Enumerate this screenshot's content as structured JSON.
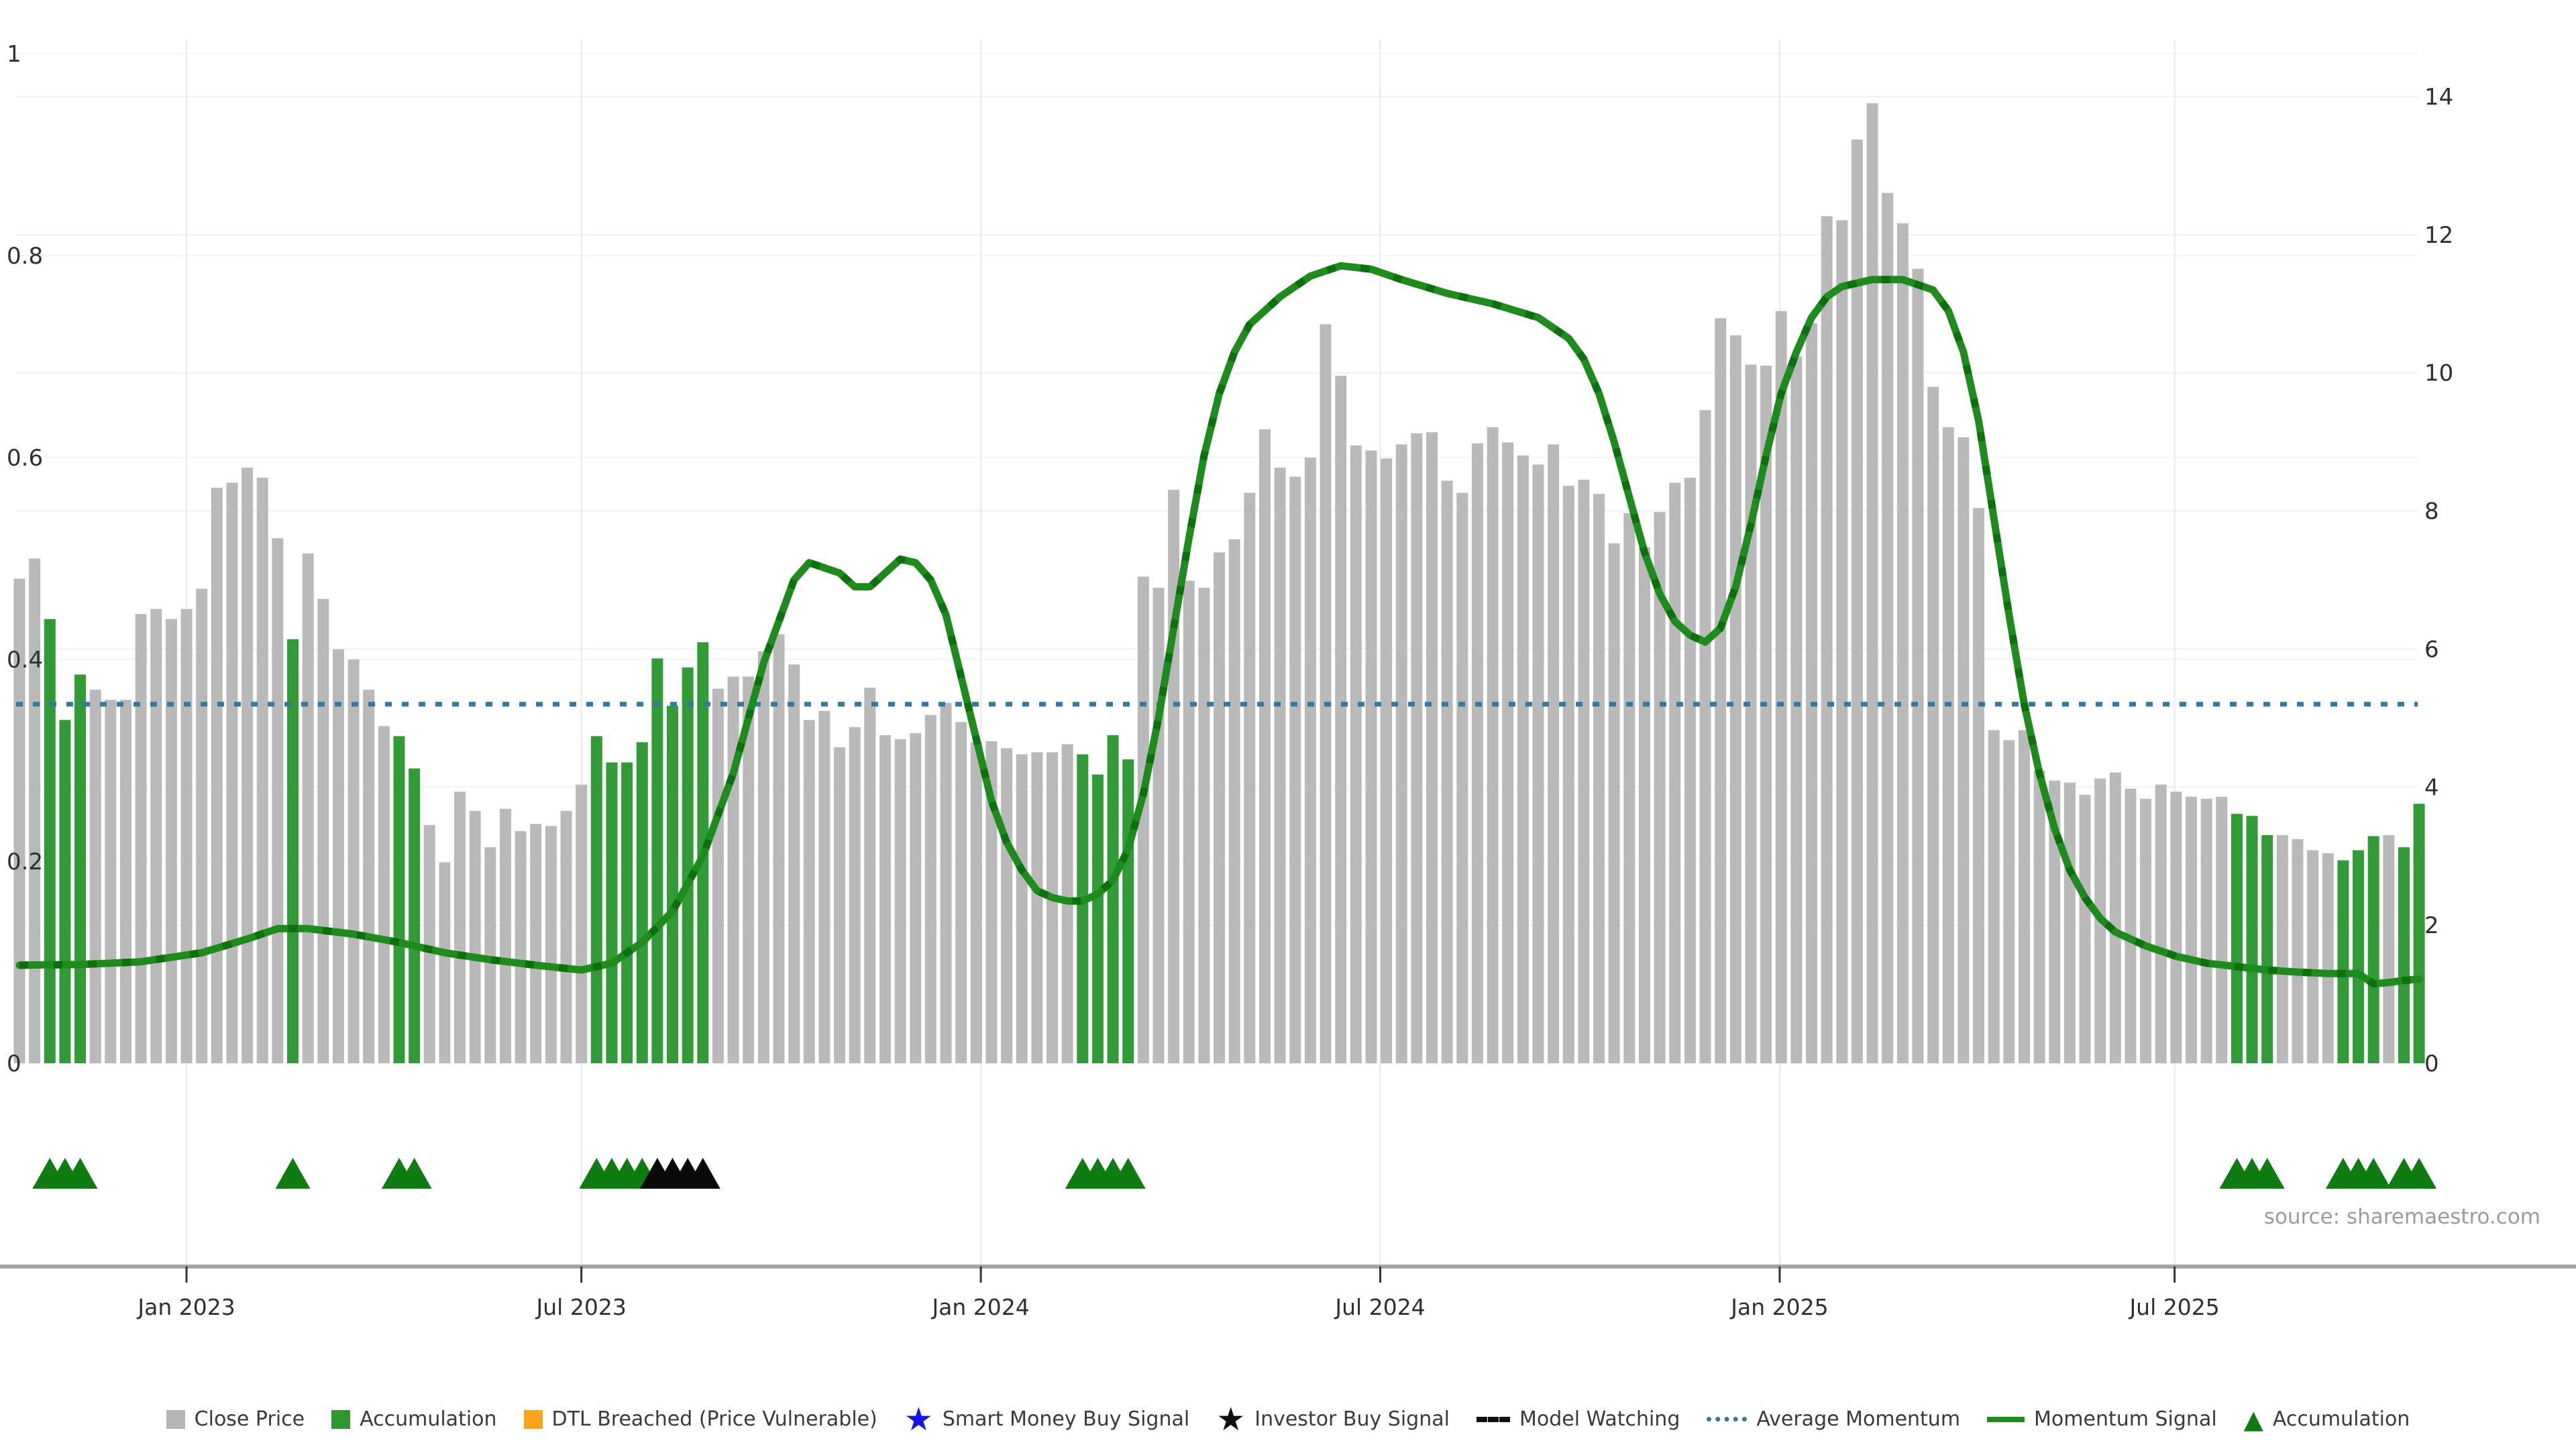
{
  "source": "source: sharemaestro.com",
  "colors": {
    "bar_gray": "#b9b9b9",
    "bar_green": "#319b35",
    "momentum_line": "#1d8c1d",
    "momentum_dash": "#0c700c",
    "average_line": "#35789e",
    "marker_green": "#0e7c10",
    "marker_black": "#0a0a0a",
    "axis_text": "#2f2f2f",
    "grid": "#eef1f5",
    "vgrid": "#e9e9e9",
    "axis_line": "#a6a6a6"
  },
  "legend": {
    "items": [
      {
        "label": "Close Price",
        "type": "swatch",
        "color": "#b5b5b5"
      },
      {
        "label": "Accumulation",
        "type": "swatch",
        "color": "#2e9732"
      },
      {
        "label": "DTL Breached (Price Vulnerable)",
        "type": "swatch",
        "color": "#f7a51b"
      },
      {
        "label": "Smart Money Buy Signal",
        "type": "star",
        "color": "#1414e6"
      },
      {
        "label": "Investor Buy Signal",
        "type": "star",
        "color": "#101010"
      },
      {
        "label": "Model Watching",
        "type": "dashed-line",
        "color": "#111111"
      },
      {
        "label": "Average Momentum",
        "type": "dotted-line",
        "color": "#35789e"
      },
      {
        "label": "Momentum Signal",
        "type": "solid-line",
        "color": "#1d8c1d"
      },
      {
        "label": "Accumulation",
        "type": "triangle",
        "color": "#0e7c10"
      }
    ]
  },
  "chart_data": {
    "type": "bar+line",
    "title": "",
    "frequency": "weekly",
    "left_axis": {
      "label": "",
      "min": 0,
      "max": 1,
      "ticks": [
        0,
        0.2,
        0.4,
        0.6,
        0.8,
        1
      ]
    },
    "right_axis": {
      "label": "",
      "min": 0,
      "max": 14,
      "ticks": [
        0,
        2,
        4,
        6,
        8,
        10,
        12,
        14
      ]
    },
    "x_ticks": [
      {
        "label": "Jan 2023",
        "week": 11
      },
      {
        "label": "Jul 2023",
        "week": 37
      },
      {
        "label": "Jan 2024",
        "week": 63.3
      },
      {
        "label": "Jul 2024",
        "week": 89.6
      },
      {
        "label": "Jan 2025",
        "week": 115.9
      },
      {
        "label": "Jul 2025",
        "week": 141.9
      }
    ],
    "average_momentum": 5.2,
    "bars_note": "each bar = [close_price_left_axis, is_accumulation(0/1), marker(0 none,1 green accumulation triangle,2 black investor triangle)]",
    "bars": [
      [
        0.48,
        0,
        0
      ],
      [
        0.5,
        0,
        0
      ],
      [
        0.44,
        1,
        1
      ],
      [
        0.34,
        1,
        1
      ],
      [
        0.385,
        1,
        1
      ],
      [
        0.37,
        0,
        0
      ],
      [
        0.36,
        0,
        0
      ],
      [
        0.36,
        0,
        0
      ],
      [
        0.445,
        0,
        0
      ],
      [
        0.45,
        0,
        0
      ],
      [
        0.44,
        0,
        0
      ],
      [
        0.45,
        0,
        0
      ],
      [
        0.47,
        0,
        0
      ],
      [
        0.57,
        0,
        0
      ],
      [
        0.575,
        0,
        0
      ],
      [
        0.59,
        0,
        0
      ],
      [
        0.58,
        0,
        0
      ],
      [
        0.52,
        0,
        0
      ],
      [
        0.42,
        1,
        1
      ],
      [
        0.505,
        0,
        0
      ],
      [
        0.46,
        0,
        0
      ],
      [
        0.41,
        0,
        0
      ],
      [
        0.4,
        0,
        0
      ],
      [
        0.37,
        0,
        0
      ],
      [
        0.334,
        0,
        0
      ],
      [
        0.324,
        1,
        1
      ],
      [
        0.292,
        1,
        1
      ],
      [
        0.236,
        0,
        0
      ],
      [
        0.199,
        0,
        0
      ],
      [
        0.269,
        0,
        0
      ],
      [
        0.25,
        0,
        0
      ],
      [
        0.214,
        0,
        0
      ],
      [
        0.252,
        0,
        0
      ],
      [
        0.23,
        0,
        0
      ],
      [
        0.237,
        0,
        0
      ],
      [
        0.235,
        0,
        0
      ],
      [
        0.25,
        0,
        0
      ],
      [
        0.276,
        0,
        0
      ],
      [
        0.324,
        1,
        1
      ],
      [
        0.298,
        1,
        1
      ],
      [
        0.298,
        1,
        1
      ],
      [
        0.318,
        1,
        1
      ],
      [
        0.401,
        1,
        2
      ],
      [
        0.354,
        1,
        2
      ],
      [
        0.392,
        1,
        2
      ],
      [
        0.417,
        1,
        2
      ],
      [
        0.371,
        0,
        0
      ],
      [
        0.383,
        0,
        0
      ],
      [
        0.383,
        0,
        0
      ],
      [
        0.408,
        0,
        0
      ],
      [
        0.425,
        0,
        0
      ],
      [
        0.395,
        0,
        0
      ],
      [
        0.34,
        0,
        0
      ],
      [
        0.349,
        0,
        0
      ],
      [
        0.313,
        0,
        0
      ],
      [
        0.333,
        0,
        0
      ],
      [
        0.372,
        0,
        0
      ],
      [
        0.325,
        0,
        0
      ],
      [
        0.321,
        0,
        0
      ],
      [
        0.327,
        0,
        0
      ],
      [
        0.345,
        0,
        0
      ],
      [
        0.357,
        0,
        0
      ],
      [
        0.338,
        0,
        0
      ],
      [
        0.318,
        0,
        0
      ],
      [
        0.319,
        0,
        0
      ],
      [
        0.312,
        0,
        0
      ],
      [
        0.306,
        0,
        0
      ],
      [
        0.308,
        0,
        0
      ],
      [
        0.308,
        0,
        0
      ],
      [
        0.316,
        0,
        0
      ],
      [
        0.306,
        1,
        1
      ],
      [
        0.286,
        1,
        1
      ],
      [
        0.325,
        1,
        1
      ],
      [
        0.301,
        1,
        1
      ],
      [
        0.482,
        0,
        0
      ],
      [
        0.471,
        0,
        0
      ],
      [
        0.568,
        0,
        0
      ],
      [
        0.478,
        0,
        0
      ],
      [
        0.471,
        0,
        0
      ],
      [
        0.506,
        0,
        0
      ],
      [
        0.519,
        0,
        0
      ],
      [
        0.565,
        0,
        0
      ],
      [
        0.628,
        0,
        0
      ],
      [
        0.59,
        0,
        0
      ],
      [
        0.581,
        0,
        0
      ],
      [
        0.6,
        0,
        0
      ],
      [
        0.732,
        0,
        0
      ],
      [
        0.681,
        0,
        0
      ],
      [
        0.612,
        0,
        0
      ],
      [
        0.607,
        0,
        0
      ],
      [
        0.599,
        0,
        0
      ],
      [
        0.613,
        0,
        0
      ],
      [
        0.624,
        0,
        0
      ],
      [
        0.625,
        0,
        0
      ],
      [
        0.577,
        0,
        0
      ],
      [
        0.565,
        0,
        0
      ],
      [
        0.614,
        0,
        0
      ],
      [
        0.63,
        0,
        0
      ],
      [
        0.615,
        0,
        0
      ],
      [
        0.602,
        0,
        0
      ],
      [
        0.593,
        0,
        0
      ],
      [
        0.613,
        0,
        0
      ],
      [
        0.572,
        0,
        0
      ],
      [
        0.578,
        0,
        0
      ],
      [
        0.564,
        0,
        0
      ],
      [
        0.515,
        0,
        0
      ],
      [
        0.545,
        0,
        0
      ],
      [
        0.511,
        0,
        0
      ],
      [
        0.546,
        0,
        0
      ],
      [
        0.575,
        0,
        0
      ],
      [
        0.58,
        0,
        0
      ],
      [
        0.647,
        0,
        0
      ],
      [
        0.738,
        0,
        0
      ],
      [
        0.721,
        0,
        0
      ],
      [
        0.692,
        0,
        0
      ],
      [
        0.691,
        0,
        0
      ],
      [
        0.745,
        0,
        0
      ],
      [
        0.7,
        0,
        0
      ],
      [
        0.733,
        0,
        0
      ],
      [
        0.839,
        0,
        0
      ],
      [
        0.835,
        0,
        0
      ],
      [
        0.915,
        0,
        0
      ],
      [
        0.951,
        0,
        0
      ],
      [
        0.862,
        0,
        0
      ],
      [
        0.832,
        0,
        0
      ],
      [
        0.787,
        0,
        0
      ],
      [
        0.67,
        0,
        0
      ],
      [
        0.63,
        0,
        0
      ],
      [
        0.62,
        0,
        0
      ],
      [
        0.55,
        0,
        0
      ],
      [
        0.33,
        0,
        0
      ],
      [
        0.32,
        0,
        0
      ],
      [
        0.33,
        0,
        0
      ],
      [
        0.29,
        0,
        0
      ],
      [
        0.28,
        0,
        0
      ],
      [
        0.278,
        0,
        0
      ],
      [
        0.266,
        0,
        0
      ],
      [
        0.282,
        0,
        0
      ],
      [
        0.288,
        0,
        0
      ],
      [
        0.272,
        0,
        0
      ],
      [
        0.262,
        0,
        0
      ],
      [
        0.276,
        0,
        0
      ],
      [
        0.269,
        0,
        0
      ],
      [
        0.264,
        0,
        0
      ],
      [
        0.262,
        0,
        0
      ],
      [
        0.264,
        0,
        0
      ],
      [
        0.247,
        1,
        1
      ],
      [
        0.245,
        1,
        1
      ],
      [
        0.226,
        1,
        1
      ],
      [
        0.226,
        0,
        0
      ],
      [
        0.222,
        0,
        0
      ],
      [
        0.211,
        0,
        0
      ],
      [
        0.208,
        0,
        0
      ],
      [
        0.201,
        1,
        1
      ],
      [
        0.211,
        1,
        1
      ],
      [
        0.225,
        1,
        1
      ],
      [
        0.226,
        0,
        0
      ],
      [
        0.214,
        1,
        1
      ],
      [
        0.257,
        1,
        1
      ]
    ],
    "momentum_line_note": "points are [week_index, value_on_right_axis]",
    "momentum_line": [
      [
        0,
        1.42
      ],
      [
        4,
        1.43
      ],
      [
        8,
        1.47
      ],
      [
        12,
        1.6
      ],
      [
        15,
        1.8
      ],
      [
        17,
        1.95
      ],
      [
        19,
        1.95
      ],
      [
        22,
        1.87
      ],
      [
        25,
        1.75
      ],
      [
        28,
        1.6
      ],
      [
        31,
        1.5
      ],
      [
        34,
        1.42
      ],
      [
        37,
        1.35
      ],
      [
        39,
        1.45
      ],
      [
        41,
        1.75
      ],
      [
        43,
        2.2
      ],
      [
        45,
        3.0
      ],
      [
        47,
        4.2
      ],
      [
        49,
        5.8
      ],
      [
        51,
        7.0
      ],
      [
        52,
        7.25
      ],
      [
        54,
        7.1
      ],
      [
        55,
        6.9
      ],
      [
        56,
        6.9
      ],
      [
        58,
        7.3
      ],
      [
        59,
        7.25
      ],
      [
        60,
        7.0
      ],
      [
        61,
        6.5
      ],
      [
        62,
        5.6
      ],
      [
        63,
        4.7
      ],
      [
        64,
        3.8
      ],
      [
        65,
        3.2
      ],
      [
        66,
        2.8
      ],
      [
        67,
        2.5
      ],
      [
        68,
        2.4
      ],
      [
        69,
        2.35
      ],
      [
        70,
        2.35
      ],
      [
        71,
        2.45
      ],
      [
        72,
        2.65
      ],
      [
        73,
        3.1
      ],
      [
        74,
        3.9
      ],
      [
        75,
        5.0
      ],
      [
        76,
        6.3
      ],
      [
        77,
        7.6
      ],
      [
        78,
        8.8
      ],
      [
        79,
        9.7
      ],
      [
        80,
        10.3
      ],
      [
        81,
        10.7
      ],
      [
        83,
        11.1
      ],
      [
        85,
        11.4
      ],
      [
        87,
        11.55
      ],
      [
        89,
        11.5
      ],
      [
        91,
        11.35
      ],
      [
        94,
        11.15
      ],
      [
        97,
        11.0
      ],
      [
        100,
        10.8
      ],
      [
        102,
        10.5
      ],
      [
        103,
        10.2
      ],
      [
        104,
        9.7
      ],
      [
        105,
        9.0
      ],
      [
        106,
        8.2
      ],
      [
        107,
        7.4
      ],
      [
        108,
        6.8
      ],
      [
        109,
        6.4
      ],
      [
        110,
        6.2
      ],
      [
        111,
        6.1
      ],
      [
        112,
        6.3
      ],
      [
        113,
        6.9
      ],
      [
        114,
        7.8
      ],
      [
        115,
        8.8
      ],
      [
        116,
        9.7
      ],
      [
        117,
        10.3
      ],
      [
        118,
        10.8
      ],
      [
        119,
        11.1
      ],
      [
        120,
        11.25
      ],
      [
        122,
        11.35
      ],
      [
        124,
        11.35
      ],
      [
        126,
        11.2
      ],
      [
        127,
        10.9
      ],
      [
        128,
        10.3
      ],
      [
        129,
        9.3
      ],
      [
        130,
        7.9
      ],
      [
        131,
        6.5
      ],
      [
        132,
        5.2
      ],
      [
        133,
        4.2
      ],
      [
        134,
        3.4
      ],
      [
        135,
        2.8
      ],
      [
        136,
        2.4
      ],
      [
        137,
        2.1
      ],
      [
        138,
        1.9
      ],
      [
        140,
        1.7
      ],
      [
        142,
        1.55
      ],
      [
        144,
        1.45
      ],
      [
        146,
        1.4
      ],
      [
        148,
        1.35
      ],
      [
        150,
        1.32
      ],
      [
        152,
        1.3
      ],
      [
        154,
        1.3
      ],
      [
        155,
        1.15
      ],
      [
        156,
        1.17
      ],
      [
        157,
        1.2
      ],
      [
        158,
        1.22
      ]
    ]
  }
}
